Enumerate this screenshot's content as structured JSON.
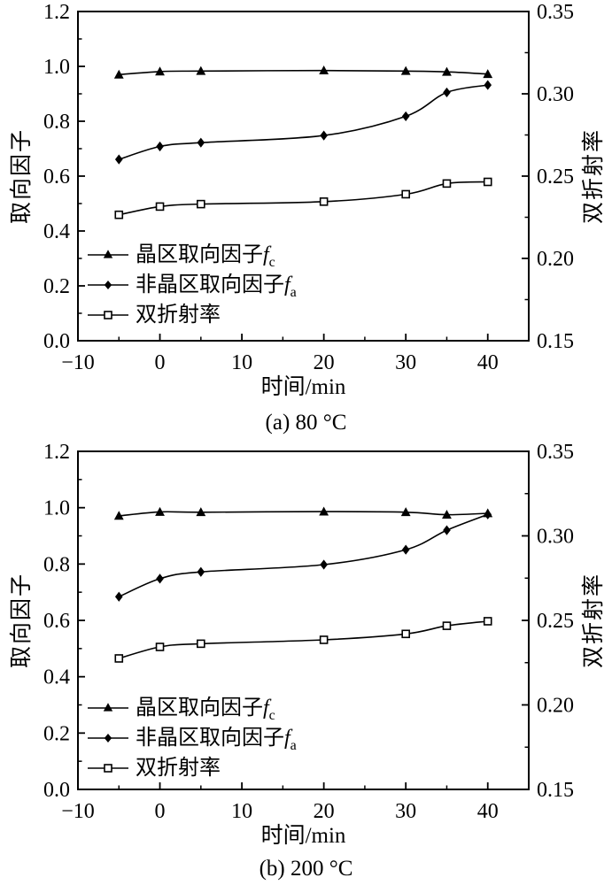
{
  "page": {
    "background": "#ffffff",
    "ink": "#000000"
  },
  "chart_data": [
    {
      "type": "line",
      "title": "(a) 80 °C",
      "xlabel": "时间/min",
      "ylabel_left": "取向因子",
      "ylabel_right": "双折射率",
      "xlim": [
        -10,
        45
      ],
      "ylim_left": [
        0.0,
        1.2
      ],
      "ylim_right": [
        0.15,
        0.35
      ],
      "grid": false,
      "legend_position": "lower-left",
      "x_major_ticks": [
        -10,
        0,
        10,
        20,
        30,
        40
      ],
      "x_major_tick_labels": [
        "−10",
        "0",
        "10",
        "20",
        "30",
        "40"
      ],
      "x_minor_ticks": [
        -5,
        5,
        15,
        25,
        35
      ],
      "y_left_major_ticks": [
        0.0,
        0.2,
        0.4,
        0.6,
        0.8,
        1.0,
        1.2
      ],
      "y_left_major_tick_labels": [
        "0.0",
        "0.2",
        "0.4",
        "0.6",
        "0.8",
        "1.0",
        "1.2"
      ],
      "y_left_minor_ticks": [
        0.1,
        0.3,
        0.5,
        0.7,
        0.9,
        1.1
      ],
      "y_right_major_ticks": [
        0.15,
        0.2,
        0.25,
        0.3,
        0.35
      ],
      "y_right_major_tick_labels": [
        "0.15",
        "0.20",
        "0.25",
        "0.30",
        "0.35"
      ],
      "y_right_minor_ticks": [
        0.175,
        0.225,
        0.275,
        0.325
      ],
      "x": [
        -5,
        0,
        5,
        20,
        30,
        35,
        40
      ],
      "series": [
        {
          "name": "晶区取向因子",
          "symbol": "f",
          "symbol_sub": "c",
          "marker": "triangle-filled",
          "axis": "left",
          "values": [
            0.97,
            0.981,
            0.983,
            0.985,
            0.983,
            0.98,
            0.972
          ]
        },
        {
          "name": "非晶区取向因子",
          "symbol": "f",
          "symbol_sub": "a",
          "marker": "diamond-filled",
          "axis": "left",
          "values": [
            0.661,
            0.708,
            0.722,
            0.748,
            0.818,
            0.905,
            0.932
          ]
        },
        {
          "name": "双折射率",
          "marker": "square-open",
          "axis": "right",
          "values": [
            0.2265,
            0.2315,
            0.233,
            0.2345,
            0.239,
            0.2455,
            0.2465
          ]
        }
      ]
    },
    {
      "type": "line",
      "title": "(b) 200 °C",
      "xlabel": "时间/min",
      "ylabel_left": "取向因子",
      "ylabel_right": "双折射率",
      "xlim": [
        -10,
        45
      ],
      "ylim_left": [
        0.0,
        1.2
      ],
      "ylim_right": [
        0.15,
        0.35
      ],
      "grid": false,
      "legend_position": "lower-left",
      "x_major_ticks": [
        -10,
        0,
        10,
        20,
        30,
        40
      ],
      "x_major_tick_labels": [
        "−10",
        "0",
        "10",
        "20",
        "30",
        "40"
      ],
      "x_minor_ticks": [
        -5,
        5,
        15,
        25,
        35
      ],
      "y_left_major_ticks": [
        0.0,
        0.2,
        0.4,
        0.6,
        0.8,
        1.0,
        1.2
      ],
      "y_left_major_tick_labels": [
        "0.0",
        "0.2",
        "0.4",
        "0.6",
        "0.8",
        "1.0",
        "1.2"
      ],
      "y_left_minor_ticks": [
        0.1,
        0.3,
        0.5,
        0.7,
        0.9,
        1.1
      ],
      "y_right_major_ticks": [
        0.15,
        0.2,
        0.25,
        0.3,
        0.35
      ],
      "y_right_major_tick_labels": [
        "0.15",
        "0.20",
        "0.25",
        "0.30",
        "0.35"
      ],
      "y_right_minor_ticks": [
        0.175,
        0.225,
        0.275,
        0.325
      ],
      "x": [
        -5,
        0,
        5,
        20,
        30,
        35,
        40
      ],
      "series": [
        {
          "name": "晶区取向因子",
          "symbol": "f",
          "symbol_sub": "c",
          "marker": "triangle-filled",
          "axis": "left",
          "values": [
            0.971,
            0.985,
            0.984,
            0.986,
            0.984,
            0.975,
            0.98
          ]
        },
        {
          "name": "非晶区取向因子",
          "symbol": "f",
          "symbol_sub": "a",
          "marker": "diamond-filled",
          "axis": "left",
          "values": [
            0.684,
            0.748,
            0.772,
            0.798,
            0.851,
            0.92,
            0.976
          ]
        },
        {
          "name": "双折射率",
          "marker": "square-open",
          "axis": "right",
          "values": [
            0.2275,
            0.2343,
            0.2362,
            0.2385,
            0.242,
            0.2468,
            0.2495
          ]
        }
      ]
    }
  ]
}
